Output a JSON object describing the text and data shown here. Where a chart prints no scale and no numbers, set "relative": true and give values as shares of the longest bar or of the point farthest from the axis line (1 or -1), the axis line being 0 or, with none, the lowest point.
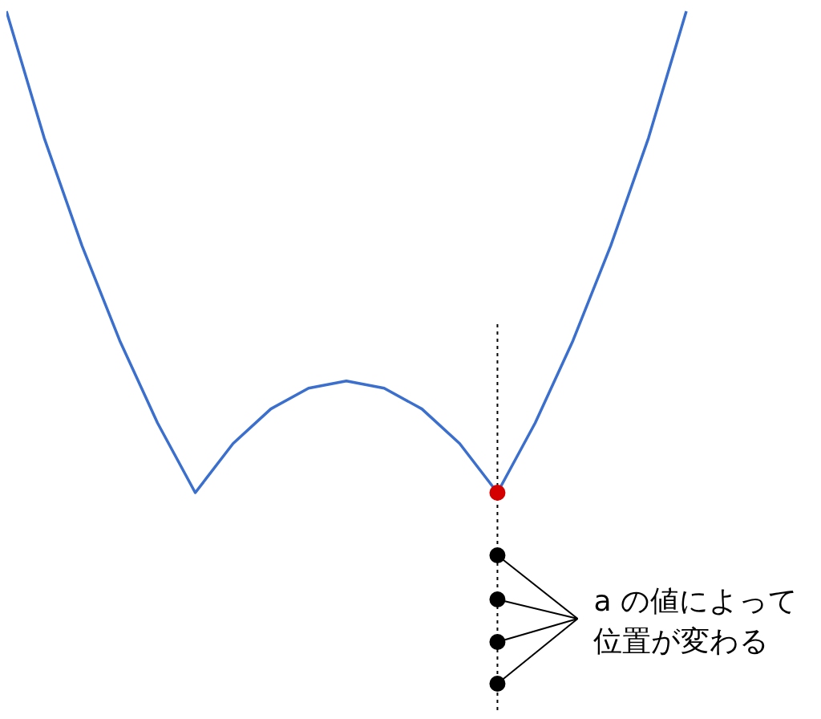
{
  "chart_data": {
    "type": "line",
    "relative": true,
    "categories": [
      null,
      null,
      null,
      null,
      null,
      null,
      null,
      null,
      null,
      null,
      null,
      null,
      null,
      null,
      null,
      null,
      null,
      null,
      null
    ],
    "series": [
      {
        "color": "#3b6fce",
        "values": [
          1,
          0.737,
          0.513,
          0.316,
          0.145,
          0,
          0.102,
          0.174,
          0.217,
          0.232,
          0.217,
          0.174,
          0.102,
          0,
          0.145,
          0.316,
          0.513,
          0.737,
          1
        ]
      }
    ],
    "annotations": [
      "a の値によって位置が変わる"
    ]
  }
}
